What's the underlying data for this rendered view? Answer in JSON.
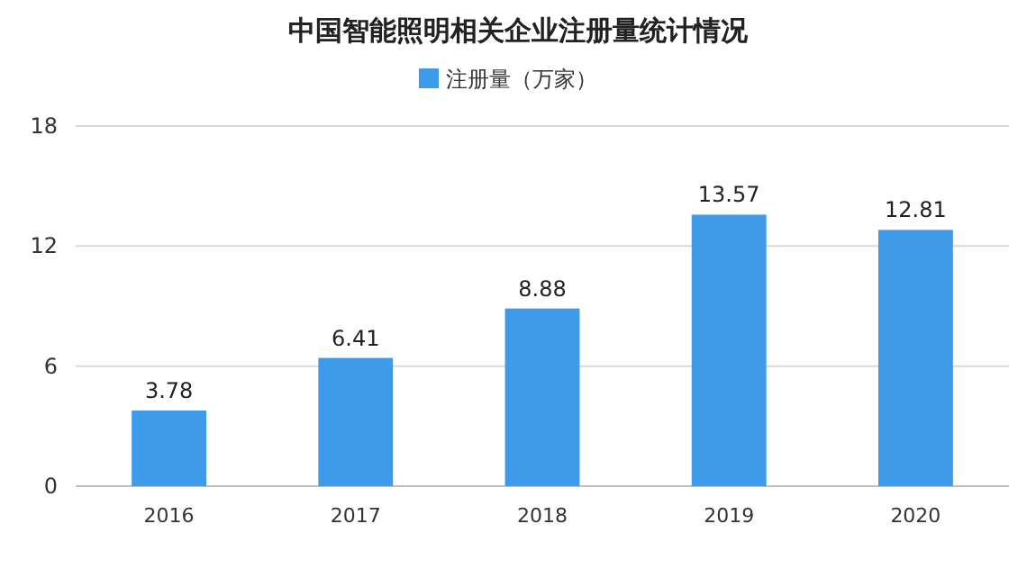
{
  "chart_data": {
    "type": "bar",
    "title": "中国智能照明相关企业注册量统计情况",
    "categories": [
      "2016",
      "2017",
      "2018",
      "2019",
      "2020"
    ],
    "series": [
      {
        "name": "注册量（万家）",
        "color": "#3d9be9",
        "values": [
          3.78,
          6.41,
          8.88,
          13.57,
          12.81
        ]
      }
    ],
    "ylim": [
      0,
      18
    ],
    "yticks": [
      0,
      6,
      12,
      18
    ],
    "grid": "y",
    "legend": "top",
    "data_labels": true
  }
}
